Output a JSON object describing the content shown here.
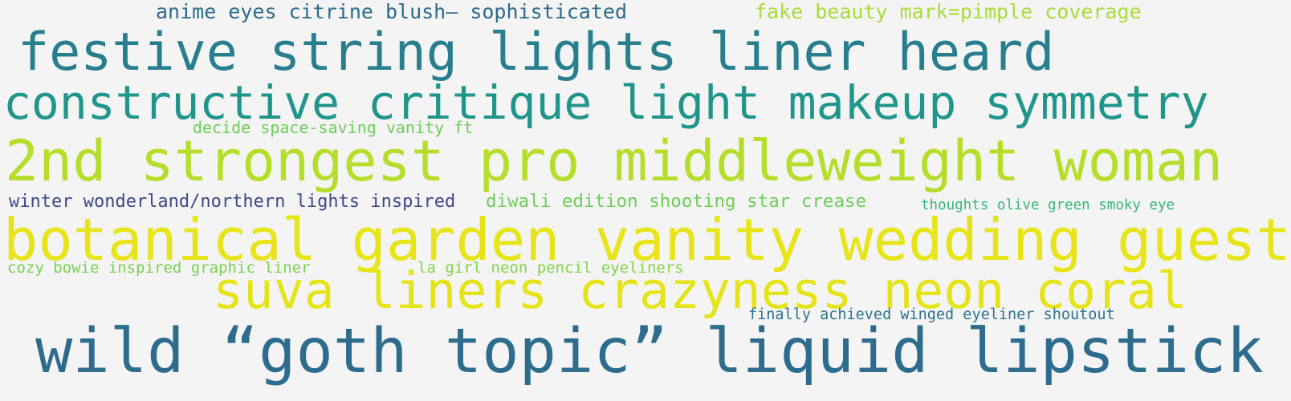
{
  "word_cloud": {
    "words": [
      {
        "text": "anime eyes citrine blush– sophisticated",
        "color": "#2b6a8c"
      },
      {
        "text": "fake beauty mark=pimple coverage",
        "color": "#a8dc3a"
      },
      {
        "text": "festive string lights liner heard",
        "color": "#277f8e"
      },
      {
        "text": "constructive critique light makeup symmetry",
        "color": "#1f958b"
      },
      {
        "text": "decide space-saving vanity ft",
        "color": "#6dcd59"
      },
      {
        "text": "2nd strongest pro middleweight woman",
        "color": "#b5de2b"
      },
      {
        "text": "winter wonderland/northern lights inspired",
        "color": "#3e4989"
      },
      {
        "text": "diwali edition shooting star crease",
        "color": "#6ece58"
      },
      {
        "text": "thoughts olive green smoky eye",
        "color": "#35b779"
      },
      {
        "text": "botanical garden vanity wedding guest",
        "color": "#e7e419"
      },
      {
        "text": "cozy bowie inspired graphic liner",
        "color": "#7ad151"
      },
      {
        "text": "la girl neon pencil eyeliners",
        "color": "#84d44b"
      },
      {
        "text": "suva liners crazyness neon coral",
        "color": "#e5e419"
      },
      {
        "text": "finally achieved winged eyeliner shoutout",
        "color": "#2c728e"
      },
      {
        "text": "wild “goth topic” liquid lipstick",
        "color": "#2e6c8e"
      }
    ]
  }
}
